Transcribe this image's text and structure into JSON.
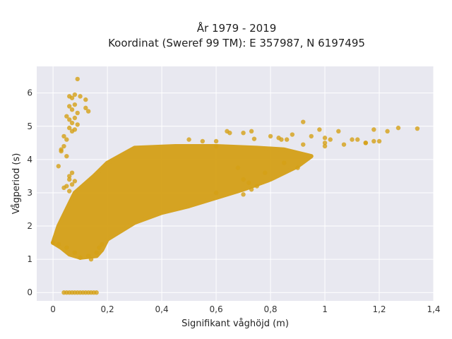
{
  "chart_data": {
    "type": "scatter",
    "title_line1": "År 1979 - 2019",
    "title_line2": "Koordinat (Sweref 99 TM): E 357987, N 6197495",
    "xlabel": "Signifikant våghöjd (m)",
    "ylabel": "Vågperiod (s)",
    "xlim": [
      -0.06,
      1.4
    ],
    "ylim": [
      -0.25,
      6.8
    ],
    "x_ticks": [
      {
        "value": 0,
        "label": "0"
      },
      {
        "value": 0.2,
        "label": "0,2"
      },
      {
        "value": 0.4,
        "label": "0,4"
      },
      {
        "value": 0.6,
        "label": "0,6"
      },
      {
        "value": 0.8,
        "label": "0,8"
      },
      {
        "value": 1.0,
        "label": "1"
      },
      {
        "value": 1.2,
        "label": "1,2"
      },
      {
        "value": 1.4,
        "label": "1,4"
      }
    ],
    "y_ticks": [
      {
        "value": 0,
        "label": "0"
      },
      {
        "value": 1,
        "label": "1"
      },
      {
        "value": 2,
        "label": "2"
      },
      {
        "value": 3,
        "label": "3"
      },
      {
        "value": 4,
        "label": "4"
      },
      {
        "value": 5,
        "label": "5"
      },
      {
        "value": 6,
        "label": "6"
      }
    ],
    "grid": true,
    "marker_color": "#d4a017",
    "background_color": "#e8e8f0",
    "cloud_polygon": [
      [
        0.0,
        1.5
      ],
      [
        0.03,
        1.35
      ],
      [
        0.06,
        1.15
      ],
      [
        0.1,
        1.05
      ],
      [
        0.16,
        1.1
      ],
      [
        0.18,
        1.28
      ],
      [
        0.2,
        1.6
      ],
      [
        0.3,
        2.1
      ],
      [
        0.4,
        2.4
      ],
      [
        0.5,
        2.6
      ],
      [
        0.6,
        2.85
      ],
      [
        0.7,
        3.1
      ],
      [
        0.8,
        3.4
      ],
      [
        0.9,
        3.8
      ],
      [
        0.95,
        4.1
      ],
      [
        0.85,
        4.3
      ],
      [
        0.75,
        4.35
      ],
      [
        0.6,
        4.4
      ],
      [
        0.45,
        4.4
      ],
      [
        0.3,
        4.35
      ],
      [
        0.2,
        3.9
      ],
      [
        0.15,
        3.5
      ],
      [
        0.08,
        3.0
      ],
      [
        0.05,
        2.5
      ],
      [
        0.02,
        2.0
      ]
    ],
    "points": [
      [
        0.09,
        6.42
      ],
      [
        0.06,
        5.9
      ],
      [
        0.07,
        5.85
      ],
      [
        0.08,
        5.95
      ],
      [
        0.1,
        5.9
      ],
      [
        0.12,
        5.8
      ],
      [
        0.06,
        5.6
      ],
      [
        0.07,
        5.5
      ],
      [
        0.08,
        5.65
      ],
      [
        0.09,
        5.4
      ],
      [
        0.05,
        5.3
      ],
      [
        0.06,
        5.2
      ],
      [
        0.07,
        5.1
      ],
      [
        0.08,
        5.25
      ],
      [
        0.09,
        5.05
      ],
      [
        0.06,
        4.95
      ],
      [
        0.07,
        4.85
      ],
      [
        0.08,
        4.9
      ],
      [
        0.12,
        5.55
      ],
      [
        0.13,
        5.45
      ],
      [
        0.05,
        4.6
      ],
      [
        0.04,
        4.4
      ],
      [
        0.03,
        4.3
      ],
      [
        0.05,
        4.1
      ],
      [
        0.02,
        3.8
      ],
      [
        0.03,
        4.25
      ],
      [
        0.04,
        4.7
      ],
      [
        0.05,
        3.2
      ],
      [
        0.06,
        3.4
      ],
      [
        0.07,
        3.25
      ],
      [
        0.08,
        3.35
      ],
      [
        0.06,
        3.05
      ],
      [
        0.04,
        3.15
      ],
      [
        0.07,
        3.6
      ],
      [
        0.06,
        3.5
      ],
      [
        0.0,
        1.5
      ],
      [
        0.02,
        1.45
      ],
      [
        0.05,
        1.35
      ],
      [
        0.08,
        1.2
      ],
      [
        0.1,
        1.05
      ],
      [
        0.13,
        1.1
      ],
      [
        0.16,
        1.2
      ],
      [
        0.17,
        1.35
      ],
      [
        0.18,
        1.45
      ],
      [
        0.14,
        1.0
      ],
      [
        0.04,
        0.0
      ],
      [
        0.05,
        0.0
      ],
      [
        0.06,
        0.0
      ],
      [
        0.07,
        0.0
      ],
      [
        0.08,
        0.0
      ],
      [
        0.09,
        0.0
      ],
      [
        0.1,
        0.0
      ],
      [
        0.11,
        0.0
      ],
      [
        0.12,
        0.0
      ],
      [
        0.13,
        0.0
      ],
      [
        0.14,
        0.0
      ],
      [
        0.15,
        0.0
      ],
      [
        0.16,
        0.0
      ],
      [
        0.5,
        4.6
      ],
      [
        0.55,
        4.55
      ],
      [
        0.6,
        4.55
      ],
      [
        0.64,
        4.85
      ],
      [
        0.7,
        4.8
      ],
      [
        0.73,
        4.85
      ],
      [
        0.74,
        4.62
      ],
      [
        0.8,
        4.7
      ],
      [
        0.83,
        4.65
      ],
      [
        0.86,
        4.6
      ],
      [
        0.92,
        5.13
      ],
      [
        0.88,
        4.75
      ],
      [
        0.92,
        4.45
      ],
      [
        0.95,
        4.7
      ],
      [
        1.0,
        4.5
      ],
      [
        1.05,
        4.85
      ],
      [
        1.1,
        4.6
      ],
      [
        1.15,
        4.5
      ],
      [
        1.18,
        4.55
      ],
      [
        1.2,
        4.55
      ],
      [
        1.02,
        4.6
      ],
      [
        0.98,
        4.9
      ],
      [
        1.0,
        4.65
      ],
      [
        1.07,
        4.45
      ],
      [
        1.0,
        4.4
      ],
      [
        1.12,
        4.6
      ],
      [
        1.18,
        4.9
      ],
      [
        1.23,
        4.85
      ],
      [
        1.27,
        4.95
      ],
      [
        1.34,
        4.93
      ],
      [
        1.15,
        4.5
      ],
      [
        0.84,
        4.6
      ],
      [
        0.6,
        4.4
      ],
      [
        0.65,
        4.8
      ],
      [
        0.68,
        3.75
      ],
      [
        0.7,
        3.4
      ],
      [
        0.72,
        3.3
      ],
      [
        0.78,
        3.6
      ],
      [
        0.85,
        3.9
      ],
      [
        0.9,
        3.75
      ],
      [
        0.75,
        3.2
      ],
      [
        0.73,
        3.1
      ],
      [
        0.7,
        2.95
      ],
      [
        0.6,
        3.0
      ]
    ]
  }
}
